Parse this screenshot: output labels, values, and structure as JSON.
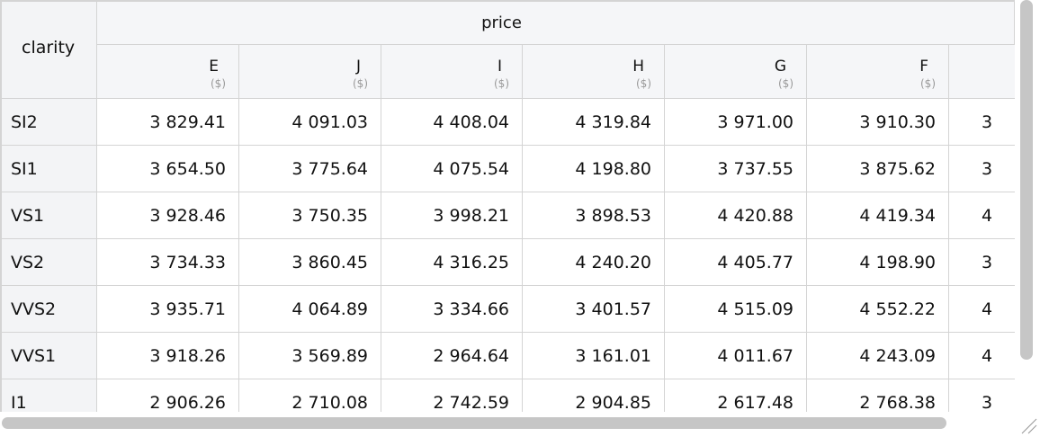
{
  "table": {
    "index_header": "clarity",
    "group_header": "price",
    "columns": [
      {
        "name": "E",
        "unit": "($)"
      },
      {
        "name": "J",
        "unit": "($)"
      },
      {
        "name": "I",
        "unit": "($)"
      },
      {
        "name": "H",
        "unit": "($)"
      },
      {
        "name": "G",
        "unit": "($)"
      },
      {
        "name": "F",
        "unit": "($)"
      }
    ],
    "rows": [
      {
        "label": "SI2",
        "cells": [
          "3 829.41",
          "4 091.03",
          "4 408.04",
          "4 319.84",
          "3 971.00",
          "3 910.30"
        ],
        "partial": "3"
      },
      {
        "label": "SI1",
        "cells": [
          "3 654.50",
          "3 775.64",
          "4 075.54",
          "4 198.80",
          "3 737.55",
          "3 875.62"
        ],
        "partial": "3"
      },
      {
        "label": "VS1",
        "cells": [
          "3 928.46",
          "3 750.35",
          "3 998.21",
          "3 898.53",
          "4 420.88",
          "4 419.34"
        ],
        "partial": "4"
      },
      {
        "label": "VS2",
        "cells": [
          "3 734.33",
          "3 860.45",
          "4 316.25",
          "4 240.20",
          "4 405.77",
          "4 198.90"
        ],
        "partial": "3"
      },
      {
        "label": "VVS2",
        "cells": [
          "3 935.71",
          "4 064.89",
          "3 334.66",
          "3 401.57",
          "4 515.09",
          "4 552.22"
        ],
        "partial": "4"
      },
      {
        "label": "VVS1",
        "cells": [
          "3 918.26",
          "3 569.89",
          "2 964.64",
          "3 161.01",
          "4 011.67",
          "4 243.09"
        ],
        "partial": "4"
      },
      {
        "label": "I1",
        "cells": [
          "2 906.26",
          "2 710.08",
          "2 742.59",
          "2 904.85",
          "2 617.48",
          "2 768.38"
        ],
        "partial": "3"
      }
    ]
  }
}
